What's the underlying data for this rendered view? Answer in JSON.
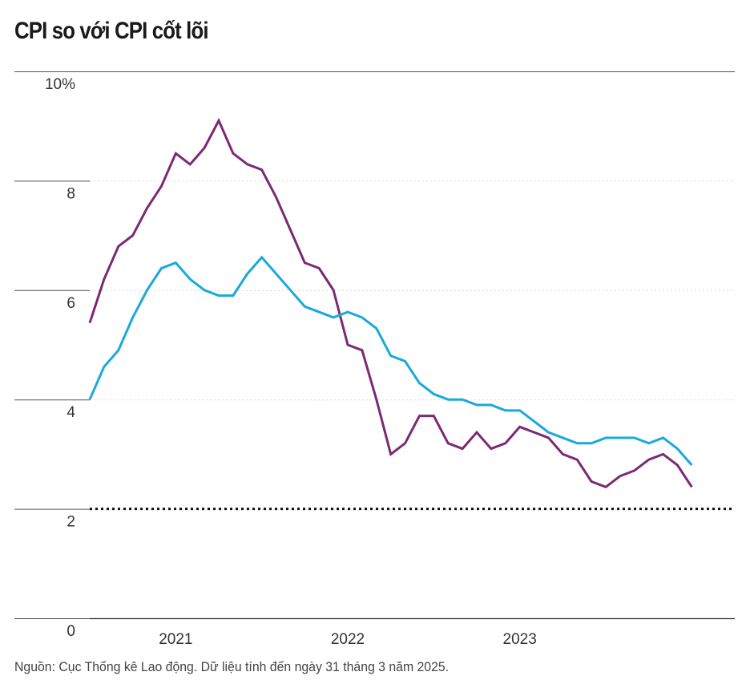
{
  "chart_data": {
    "type": "line",
    "title": "CPI so với CPI cốt lõi",
    "source": "Nguồn: Cục Thống kê Lao động. Dữ liệu tính đến ngày 31 tháng 3 năm 2025.",
    "x_start": 2020.5,
    "x_step": 0.0833333333,
    "x_range": [
      2020.5,
      2024.25
    ],
    "ylim": [
      0,
      10
    ],
    "y_ticks": [
      0,
      2,
      4,
      6,
      8,
      10
    ],
    "y_tick_labels": [
      "0",
      "2",
      "4",
      "6",
      "8",
      "10%"
    ],
    "x_ticks": [
      2021,
      2022,
      2023
    ],
    "x_tick_labels": [
      "2021",
      "2022",
      "2023"
    ],
    "reference_line": {
      "y": 2,
      "style": "dotted",
      "color": "#111111"
    },
    "grid": true,
    "series": [
      {
        "name": "CPI",
        "color": "#7a2a74",
        "values": [
          5.4,
          6.2,
          6.8,
          7.0,
          7.5,
          7.9,
          8.5,
          8.3,
          8.6,
          9.1,
          8.5,
          8.3,
          8.2,
          7.7,
          7.1,
          6.5,
          6.4,
          6.0,
          5.0,
          4.9,
          4.0,
          3.0,
          3.2,
          3.7,
          3.7,
          3.2,
          3.1,
          3.4,
          3.1,
          3.2,
          3.5,
          3.4,
          3.3,
          3.0,
          2.9,
          2.5,
          2.4,
          2.6,
          2.7,
          2.9,
          3.0,
          2.8,
          2.4
        ]
      },
      {
        "name": "CPI cốt lõi",
        "color": "#19a9da",
        "values": [
          4.0,
          4.6,
          4.9,
          5.5,
          6.0,
          6.4,
          6.5,
          6.2,
          6.0,
          5.9,
          5.9,
          6.3,
          6.6,
          6.3,
          6.0,
          5.7,
          5.6,
          5.5,
          5.6,
          5.5,
          5.3,
          4.8,
          4.7,
          4.3,
          4.1,
          4.0,
          4.0,
          3.9,
          3.9,
          3.8,
          3.8,
          3.6,
          3.4,
          3.3,
          3.2,
          3.2,
          3.3,
          3.3,
          3.3,
          3.2,
          3.3,
          3.1,
          2.8
        ]
      }
    ]
  }
}
